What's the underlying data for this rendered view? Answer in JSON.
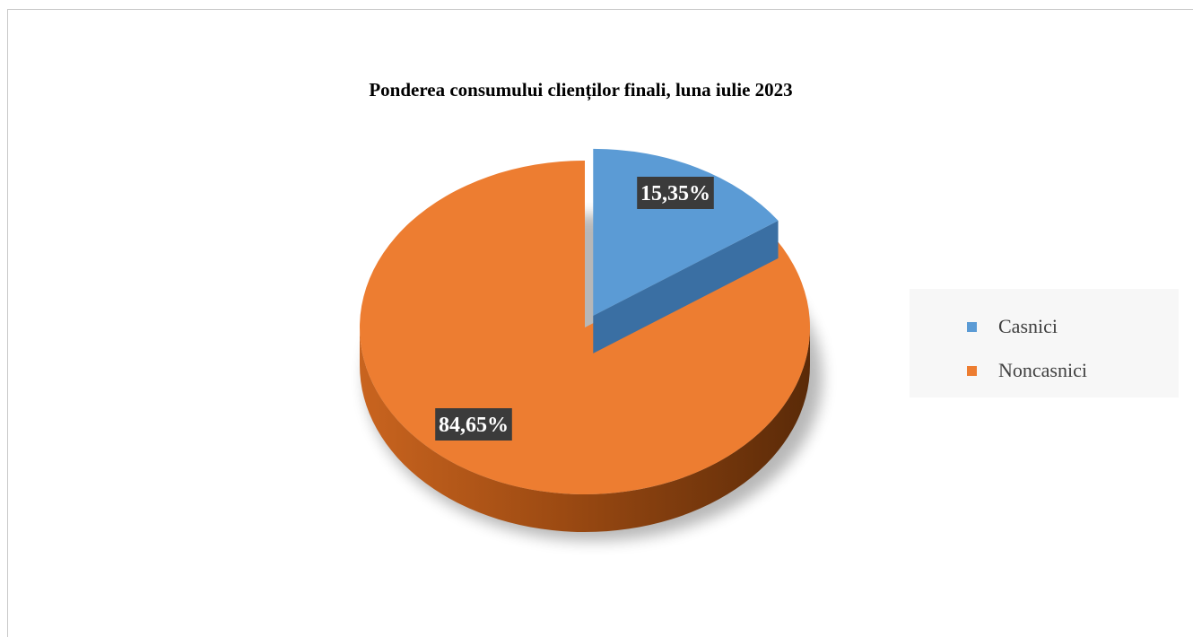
{
  "chart_data": {
    "type": "pie",
    "title": "Ponderea consumului clienților finali, luna iulie 2023",
    "categories": [
      "Casnici",
      "Noncasnici"
    ],
    "values": [
      15.35,
      84.65
    ],
    "data_labels": [
      "15,35%",
      "84,65%"
    ],
    "colors": [
      "#5b9bd5",
      "#ed7d31"
    ],
    "exploded": [
      "Casnici"
    ],
    "three_d": true,
    "legend": {
      "position": "right",
      "items": [
        {
          "label": "Casnici",
          "color": "#5b9bd5"
        },
        {
          "label": "Noncasnici",
          "color": "#ed7d31"
        }
      ]
    }
  }
}
